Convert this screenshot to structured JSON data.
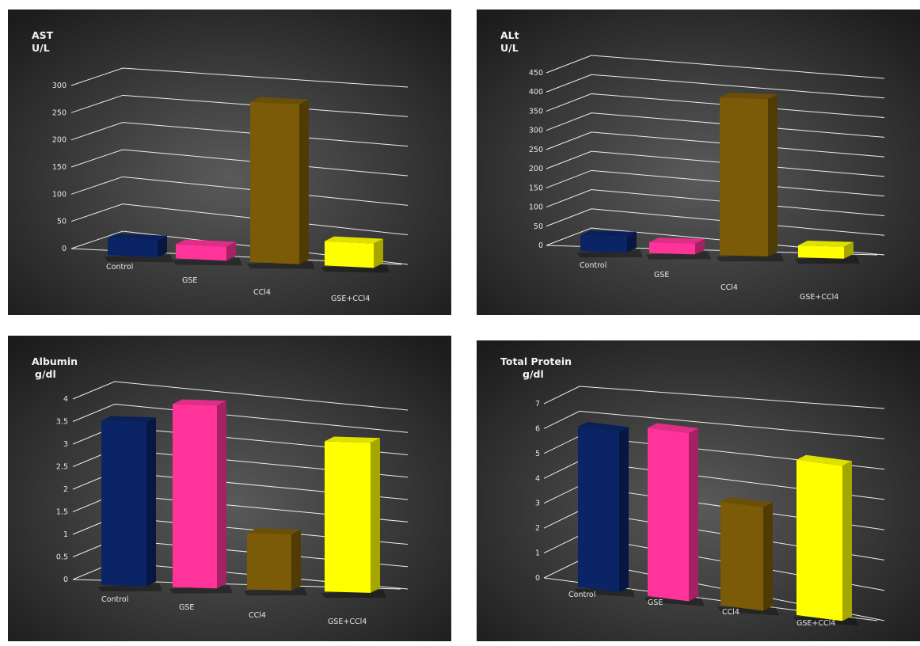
{
  "chart_data": [
    {
      "type": "bar",
      "title": "AST",
      "unit": "U/L",
      "categories": [
        "Control",
        "GSE",
        "CCl4",
        "GSE+CCl4"
      ],
      "values": [
        30,
        25,
        283,
        43
      ],
      "ylim": [
        0,
        300
      ],
      "yticks": [
        "0",
        "50",
        "100",
        "150",
        "200",
        "250",
        "300"
      ],
      "colors": [
        "#0a2466",
        "#ff3399",
        "#7b5a08",
        "#ffff00"
      ],
      "grid": true
    },
    {
      "type": "bar",
      "title": "ALt",
      "unit": "U/L",
      "categories": [
        "Control",
        "GSE",
        "CCl4",
        "GSE+CCl4"
      ],
      "values": [
        40,
        27,
        395,
        30
      ],
      "ylim": [
        0,
        450
      ],
      "yticks": [
        "0",
        "50",
        "100",
        "150",
        "200",
        "250",
        "300",
        "350",
        "400",
        "450"
      ],
      "colors": [
        "#0a2466",
        "#ff3399",
        "#7b5a08",
        "#ffff00"
      ],
      "grid": true
    },
    {
      "type": "bar",
      "title": "Albumin",
      "unit": "g/dl",
      "categories": [
        "Control",
        "GSE",
        "CCl4",
        "GSE+CCl4"
      ],
      "values": [
        3.5,
        3.9,
        1.2,
        3.2
      ],
      "ylim": [
        0,
        4
      ],
      "yticks": [
        "0",
        "0.5",
        "1",
        "1.5",
        "2",
        "2.5",
        "3",
        "3.5",
        "4"
      ],
      "colors": [
        "#0a2466",
        "#ff3399",
        "#7b5a08",
        "#ffff00"
      ],
      "grid": true
    },
    {
      "type": "bar",
      "title": "Total Protein",
      "unit": "g/dl",
      "categories": [
        "Control",
        "GSE",
        "CCl4",
        "GSE+CCl4"
      ],
      "values": [
        6.2,
        6.5,
        4.0,
        6.0
      ],
      "ylim": [
        0,
        7
      ],
      "yticks": [
        "0",
        "1",
        "2",
        "3",
        "4",
        "5",
        "6",
        "7"
      ],
      "colors": [
        "#0a2466",
        "#ff3399",
        "#7b5a08",
        "#ffff00"
      ],
      "grid": true
    }
  ]
}
